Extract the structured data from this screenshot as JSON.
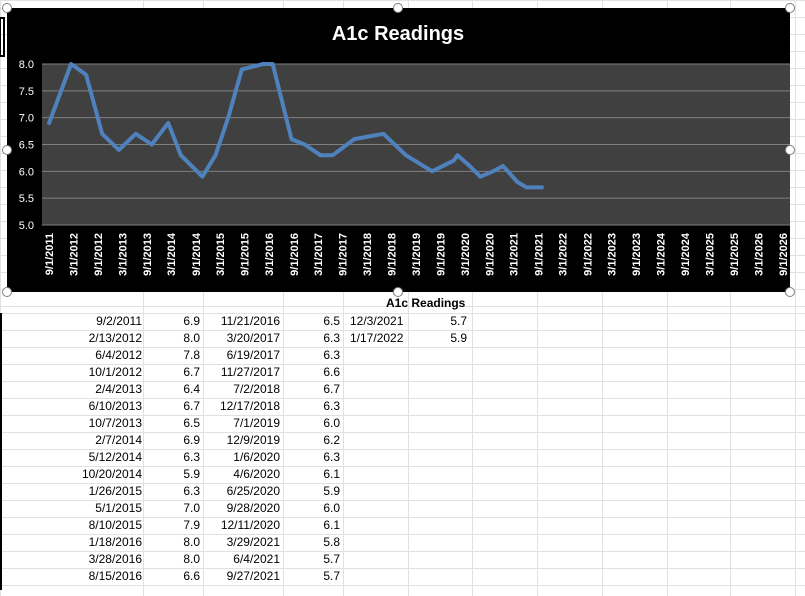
{
  "chart_data": {
    "type": "line",
    "title": "A1c Readings",
    "ylim": [
      5.0,
      8.0
    ],
    "yticks": [
      "5.0",
      "5.5",
      "6.0",
      "6.5",
      "7.0",
      "7.5",
      "8.0"
    ],
    "xticks": [
      "9/1/2011",
      "3/1/2012",
      "9/1/2012",
      "3/1/2013",
      "9/1/2013",
      "3/1/2014",
      "9/1/2014",
      "3/1/2015",
      "9/1/2015",
      "3/1/2016",
      "9/1/2016",
      "3/1/2017",
      "9/1/2017",
      "3/1/2018",
      "9/1/2018",
      "3/1/2019",
      "9/1/2019",
      "3/1/2020",
      "9/1/2020",
      "3/1/2021",
      "9/1/2021",
      "3/1/2022",
      "9/1/2022",
      "3/1/2023",
      "9/1/2023",
      "3/1/2024",
      "9/1/2024",
      "3/1/2025",
      "9/1/2025",
      "3/1/2026",
      "9/1/2026"
    ],
    "xrange": [
      "9/1/2011",
      "9/1/2026"
    ],
    "grid": true,
    "colors": {
      "plot_bg": "#404040",
      "outer_bg": "#000000",
      "line": "#4f81bd"
    },
    "series": [
      {
        "x": [
          "9/2/2011",
          "2/13/2012",
          "6/4/2012",
          "10/1/2012",
          "2/4/2013",
          "6/10/2013",
          "10/7/2013",
          "2/7/2014",
          "5/12/2014",
          "10/20/2014",
          "1/26/2015",
          "5/1/2015",
          "8/10/2015",
          "1/18/2016",
          "3/28/2016",
          "8/15/2016",
          "11/21/2016",
          "3/20/2017",
          "6/19/2017",
          "11/27/2017",
          "7/2/2018",
          "12/17/2018",
          "7/1/2019",
          "12/9/2019",
          "1/6/2020",
          "4/6/2020",
          "6/25/2020",
          "9/28/2020",
          "12/11/2020",
          "3/29/2021",
          "6/4/2021",
          "9/27/2021"
        ],
        "values": [
          6.9,
          8.0,
          7.8,
          6.7,
          6.4,
          6.7,
          6.5,
          6.9,
          6.3,
          5.9,
          6.3,
          7.0,
          7.9,
          8.0,
          8.0,
          6.6,
          6.5,
          6.3,
          6.3,
          6.6,
          6.7,
          6.3,
          6.0,
          6.2,
          6.3,
          6.1,
          5.9,
          6.0,
          6.1,
          5.8,
          5.7,
          5.7
        ]
      }
    ]
  },
  "table": {
    "header": "A1c Readings",
    "col1": {
      "dates": [
        "9/2/2011",
        "2/13/2012",
        "6/4/2012",
        "10/1/2012",
        "2/4/2013",
        "6/10/2013",
        "10/7/2013",
        "2/7/2014",
        "5/12/2014",
        "10/20/2014",
        "1/26/2015",
        "5/1/2015",
        "8/10/2015",
        "1/18/2016",
        "3/28/2016",
        "8/15/2016"
      ],
      "values": [
        "6.9",
        "8.0",
        "7.8",
        "6.7",
        "6.4",
        "6.7",
        "6.5",
        "6.9",
        "6.3",
        "5.9",
        "6.3",
        "7.0",
        "7.9",
        "8.0",
        "8.0",
        "6.6"
      ]
    },
    "col2": {
      "dates": [
        "11/21/2016",
        "3/20/2017",
        "6/19/2017",
        "11/27/2017",
        "7/2/2018",
        "12/17/2018",
        "7/1/2019",
        "12/9/2019",
        "1/6/2020",
        "4/6/2020",
        "6/25/2020",
        "9/28/2020",
        "12/11/2020",
        "3/29/2021",
        "6/4/2021",
        "9/27/2021"
      ],
      "values": [
        "6.5",
        "6.3",
        "6.3",
        "6.6",
        "6.7",
        "6.3",
        "6.0",
        "6.2",
        "6.3",
        "6.1",
        "5.9",
        "6.0",
        "6.1",
        "5.8",
        "5.7",
        "5.7"
      ]
    },
    "col3": {
      "dates": [
        "12/3/2021",
        "1/17/2022"
      ],
      "values": [
        "5.7",
        "5.9"
      ]
    }
  }
}
